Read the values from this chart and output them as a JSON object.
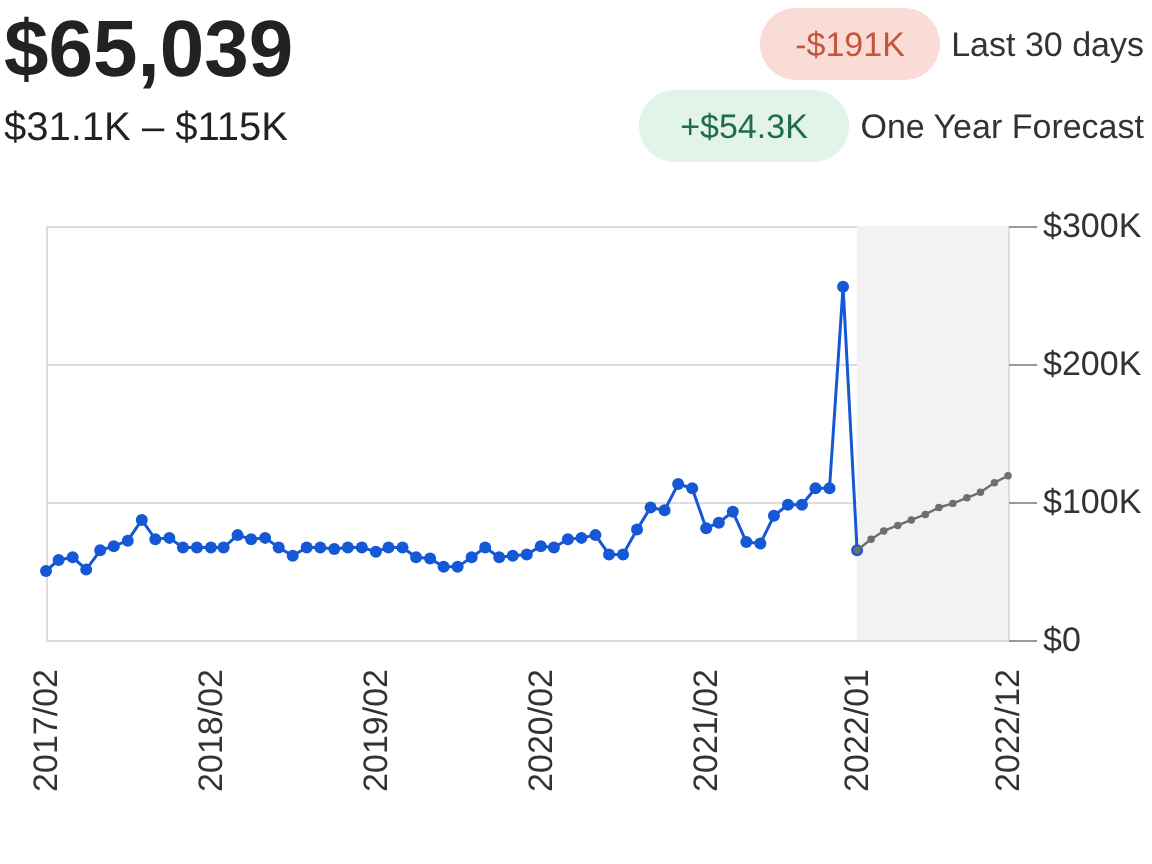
{
  "chart_data": {
    "type": "line",
    "title": "$65,039",
    "subtitle": "$31.1K – $115K",
    "annotations": [
      "-$191K",
      "Last 30 days",
      "+$54.3K",
      "One Year Forecast"
    ],
    "x": [
      "2017-02",
      "2017-03",
      "2017-04",
      "2017-05",
      "2017-06",
      "2017-07",
      "2017-08",
      "2017-09",
      "2017-10",
      "2017-11",
      "2017-12",
      "2018-01",
      "2018-02",
      "2018-03",
      "2018-04",
      "2018-05",
      "2018-06",
      "2018-07",
      "2018-08",
      "2018-09",
      "2018-10",
      "2018-11",
      "2018-12",
      "2019-01",
      "2019-02",
      "2019-03",
      "2019-04",
      "2019-05",
      "2019-06",
      "2019-07",
      "2019-08",
      "2019-09",
      "2019-10",
      "2019-11",
      "2019-12",
      "2020-01",
      "2020-02",
      "2020-03",
      "2020-04",
      "2020-05",
      "2020-06",
      "2020-07",
      "2020-08",
      "2020-09",
      "2020-10",
      "2020-11",
      "2020-12",
      "2021-01",
      "2021-02",
      "2021-03",
      "2021-04",
      "2021-05",
      "2021-06",
      "2021-07",
      "2021-08",
      "2021-09",
      "2021-10",
      "2021-11",
      "2021-12",
      "2022-01"
    ],
    "series": [
      {
        "color": "#1558d6",
        "values": [
          50000,
          58000,
          60000,
          51000,
          65000,
          68000,
          72000,
          87000,
          73000,
          74000,
          67000,
          67000,
          67000,
          67000,
          76000,
          73000,
          74000,
          67000,
          61000,
          67000,
          67000,
          66000,
          67000,
          67000,
          64000,
          67000,
          67000,
          60000,
          59000,
          53000,
          53000,
          60000,
          67000,
          60000,
          61000,
          62000,
          68000,
          67000,
          73000,
          74000,
          76000,
          62000,
          62000,
          80000,
          96000,
          94000,
          113000,
          110000,
          81000,
          85000,
          93000,
          71000,
          70000,
          90000,
          98000,
          98000,
          110000,
          110000,
          256000,
          65000
        ]
      },
      {
        "color": "#6e6e6e",
        "x": [
          "2022-01",
          "2022-02",
          "2022-03",
          "2022-04",
          "2022-05",
          "2022-06",
          "2022-07",
          "2022-08",
          "2022-09",
          "2022-10",
          "2022-11",
          "2022-12"
        ],
        "values": [
          65000,
          73000,
          79000,
          83000,
          87000,
          91000,
          96000,
          99000,
          103000,
          107000,
          114000,
          119000
        ]
      }
    ],
    "xlim": [
      "2017-02",
      "2022-12"
    ],
    "xticks": [
      {
        "value": "2017-02",
        "label": "2017/02"
      },
      {
        "value": "2018-02",
        "label": "2018/02"
      },
      {
        "value": "2019-02",
        "label": "2019/02"
      },
      {
        "value": "2020-02",
        "label": "2020/02"
      },
      {
        "value": "2021-02",
        "label": "2021/02"
      },
      {
        "value": "2022-01",
        "label": "2022/01"
      },
      {
        "value": "2022-12",
        "label": "2022/12"
      }
    ],
    "ylim": [
      0,
      300000
    ],
    "yticks": [
      {
        "value": 0,
        "label": "$0"
      },
      {
        "value": 100000,
        "label": "$100K"
      },
      {
        "value": 200000,
        "label": "$200K"
      },
      {
        "value": 300000,
        "label": "$300K"
      }
    ],
    "grid": "y",
    "marker": "circle",
    "bands": [
      {
        "axis": "x",
        "from": "2022-01",
        "to": "2022-12",
        "color": "#f2f2f2"
      }
    ]
  }
}
